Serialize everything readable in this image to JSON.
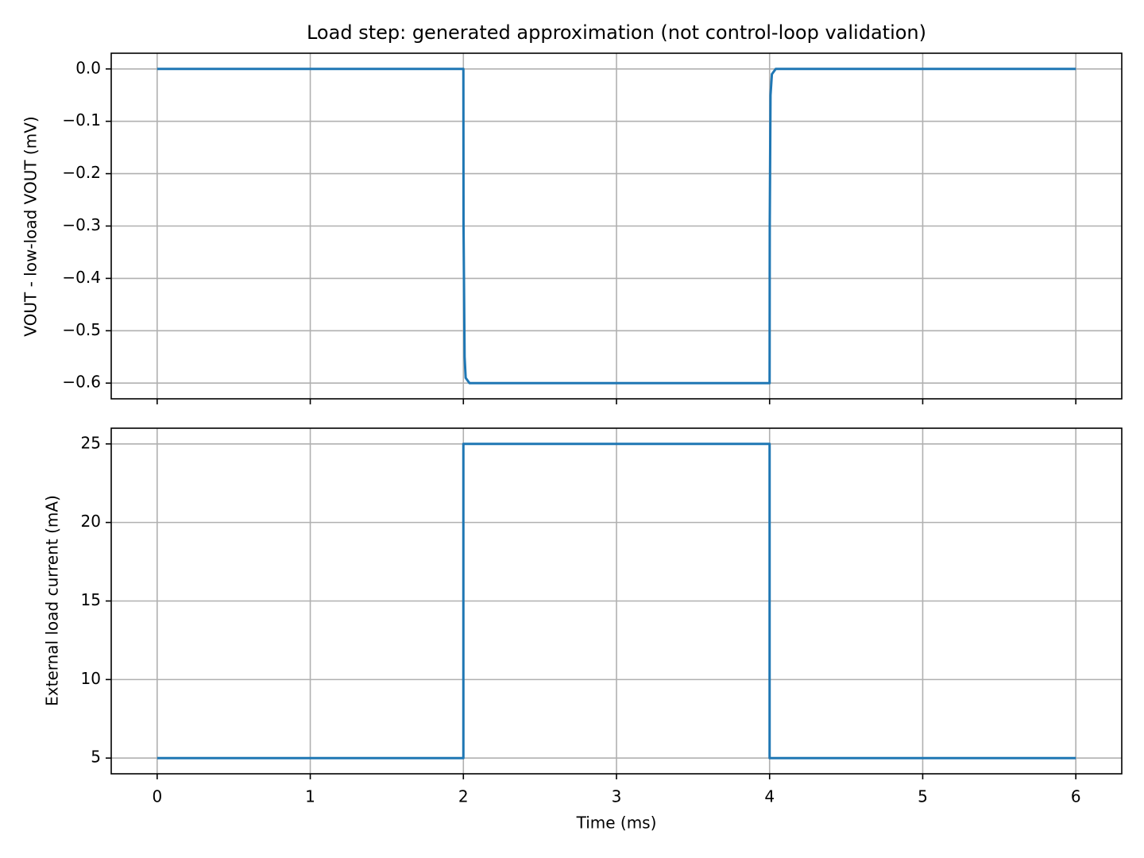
{
  "chart_data": [
    {
      "type": "line",
      "title": "Load step: generated approximation (not control-loop validation)",
      "y_label": "VOUT - low-load VOUT (mV)",
      "x": [
        0,
        2,
        2.001,
        2.008,
        2.015,
        2.04,
        4,
        4.001,
        4.006,
        4.015,
        4.04,
        6
      ],
      "series": [
        {
          "color": "#1f77b4",
          "values": [
            0,
            0,
            -0.3,
            -0.55,
            -0.59,
            -0.6,
            -0.6,
            -0.3,
            -0.05,
            -0.01,
            0,
            0
          ]
        }
      ],
      "ylim": [
        -0.63,
        0.03
      ],
      "yticks": [
        {
          "value": 0,
          "label": "0.0"
        },
        {
          "value": -0.1,
          "label": "−0.1"
        },
        {
          "value": -0.2,
          "label": "−0.2"
        },
        {
          "value": -0.3,
          "label": "−0.3"
        },
        {
          "value": -0.4,
          "label": "−0.4"
        },
        {
          "value": -0.5,
          "label": "−0.5"
        },
        {
          "value": -0.6,
          "label": "−0.6"
        }
      ],
      "grid": true
    },
    {
      "type": "line",
      "x_label": "Time (ms)",
      "y_label": "External load current (mA)",
      "x": [
        0,
        2,
        2,
        4,
        4,
        6
      ],
      "series": [
        {
          "color": "#1f77b4",
          "values": [
            5,
            5,
            25,
            25,
            5,
            5
          ]
        }
      ],
      "xlim": [
        -0.3,
        6.3
      ],
      "xticks": [
        0,
        1,
        2,
        3,
        4,
        5,
        6
      ],
      "ylim": [
        4,
        26
      ],
      "yticks": [
        5,
        10,
        15,
        20,
        25
      ],
      "grid": true
    }
  ]
}
